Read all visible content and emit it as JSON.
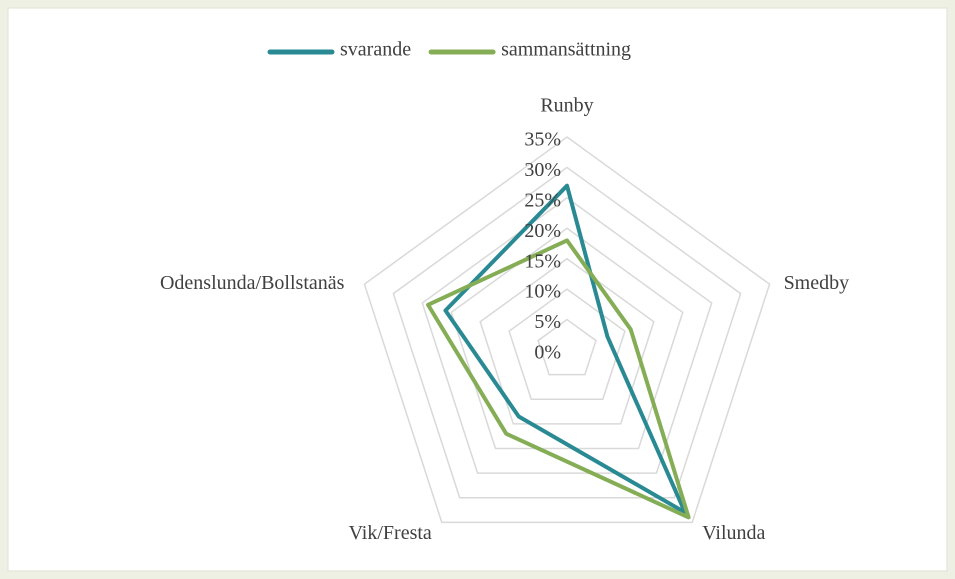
{
  "chart_data": {
    "type": "radar",
    "categories": [
      "Runby",
      "Smedby",
      "Vilunda",
      "Vik/Fresta",
      "Odenslunda/Bollstanäs"
    ],
    "series": [
      {
        "name": "svarande",
        "color": "#2a8a93",
        "values": [
          27,
          7,
          33,
          13.5,
          21
        ]
      },
      {
        "name": "sammansättning",
        "color": "#84ad55",
        "values": [
          18,
          11,
          34,
          17,
          24
        ]
      }
    ],
    "rlim": [
      0,
      35
    ],
    "rticks": [
      {
        "value": 0,
        "label": "0%"
      },
      {
        "value": 5,
        "label": "5%"
      },
      {
        "value": 10,
        "label": "10%"
      },
      {
        "value": 15,
        "label": "15%"
      },
      {
        "value": 20,
        "label": "20%"
      },
      {
        "value": 25,
        "label": "25%"
      },
      {
        "value": 30,
        "label": "30%"
      },
      {
        "value": 35,
        "label": "35%"
      }
    ],
    "grid": true,
    "legend": "top"
  }
}
